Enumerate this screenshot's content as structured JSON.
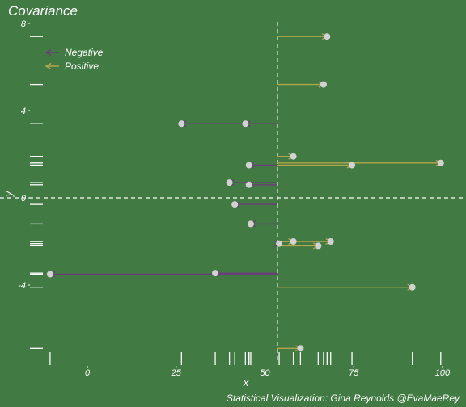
{
  "chart_data": {
    "type": "scatter",
    "title": "Covariance",
    "caption": "Statistical Visualization: Gina Reynolds @EvaMaeRey",
    "xlabel": "x",
    "ylabel": "y",
    "xlim": [
      -10,
      101
    ],
    "ylim": [
      -7,
      8.5
    ],
    "x_ticks": [
      0,
      25,
      50,
      75,
      100
    ],
    "y_ticks": [
      -4,
      0,
      4,
      8
    ],
    "x_mean": 53.5,
    "y_mean": 0,
    "legend": {
      "position": "top-left",
      "items": [
        {
          "label": "Negative",
          "color": "#6b3d7a"
        },
        {
          "label": "Positive",
          "color": "#b3a64a"
        }
      ]
    },
    "colors": {
      "background": "#427a44",
      "negative": "#6b3d7a",
      "positive": "#b3a64a",
      "point": "#d2d2d2",
      "guide": "#ffffff"
    },
    "points": [
      {
        "x": 67.5,
        "y": 7.4,
        "sign": "positive"
      },
      {
        "x": 66.5,
        "y": 5.2,
        "sign": "positive"
      },
      {
        "x": 26.5,
        "y": 3.4,
        "sign": "negative"
      },
      {
        "x": 44.5,
        "y": 3.4,
        "sign": "negative"
      },
      {
        "x": 58.0,
        "y": 1.9,
        "sign": "positive"
      },
      {
        "x": 99.5,
        "y": 1.6,
        "sign": "positive"
      },
      {
        "x": 74.5,
        "y": 1.5,
        "sign": "positive"
      },
      {
        "x": 45.5,
        "y": 1.5,
        "sign": "negative"
      },
      {
        "x": 40.0,
        "y": 0.7,
        "sign": "negative"
      },
      {
        "x": 45.5,
        "y": 0.6,
        "sign": "negative"
      },
      {
        "x": 41.5,
        "y": -0.3,
        "sign": "negative"
      },
      {
        "x": 46.0,
        "y": -1.2,
        "sign": "negative"
      },
      {
        "x": 58.0,
        "y": -2.0,
        "sign": "positive"
      },
      {
        "x": 68.5,
        "y": -2.0,
        "sign": "positive"
      },
      {
        "x": 54.0,
        "y": -2.1,
        "sign": "negative"
      },
      {
        "x": 65.0,
        "y": -2.2,
        "sign": "positive"
      },
      {
        "x": -10.5,
        "y": -3.5,
        "sign": "negative"
      },
      {
        "x": 36.0,
        "y": -3.45,
        "sign": "negative"
      },
      {
        "x": 91.5,
        "y": -4.1,
        "sign": "positive"
      },
      {
        "x": 60.0,
        "y": -6.9,
        "sign": "positive"
      }
    ]
  }
}
